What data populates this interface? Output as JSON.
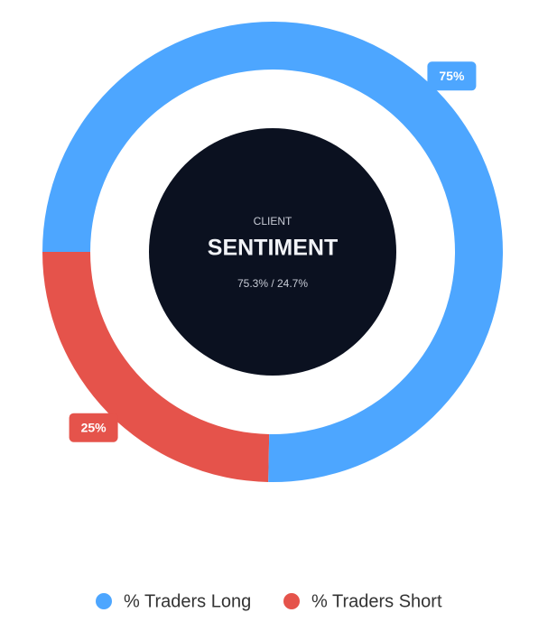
{
  "chart_data": {
    "type": "donut",
    "kicker": "CLIENT",
    "title": "SENTIMENT",
    "subtitle": "75.3% / 24.7%",
    "categories": [
      "% Traders Long",
      "% Traders Short"
    ],
    "values": [
      75.3,
      24.7
    ],
    "value_labels": [
      "75%",
      "25%"
    ],
    "colors": [
      "#4da6ff",
      "#e5534b"
    ]
  }
}
